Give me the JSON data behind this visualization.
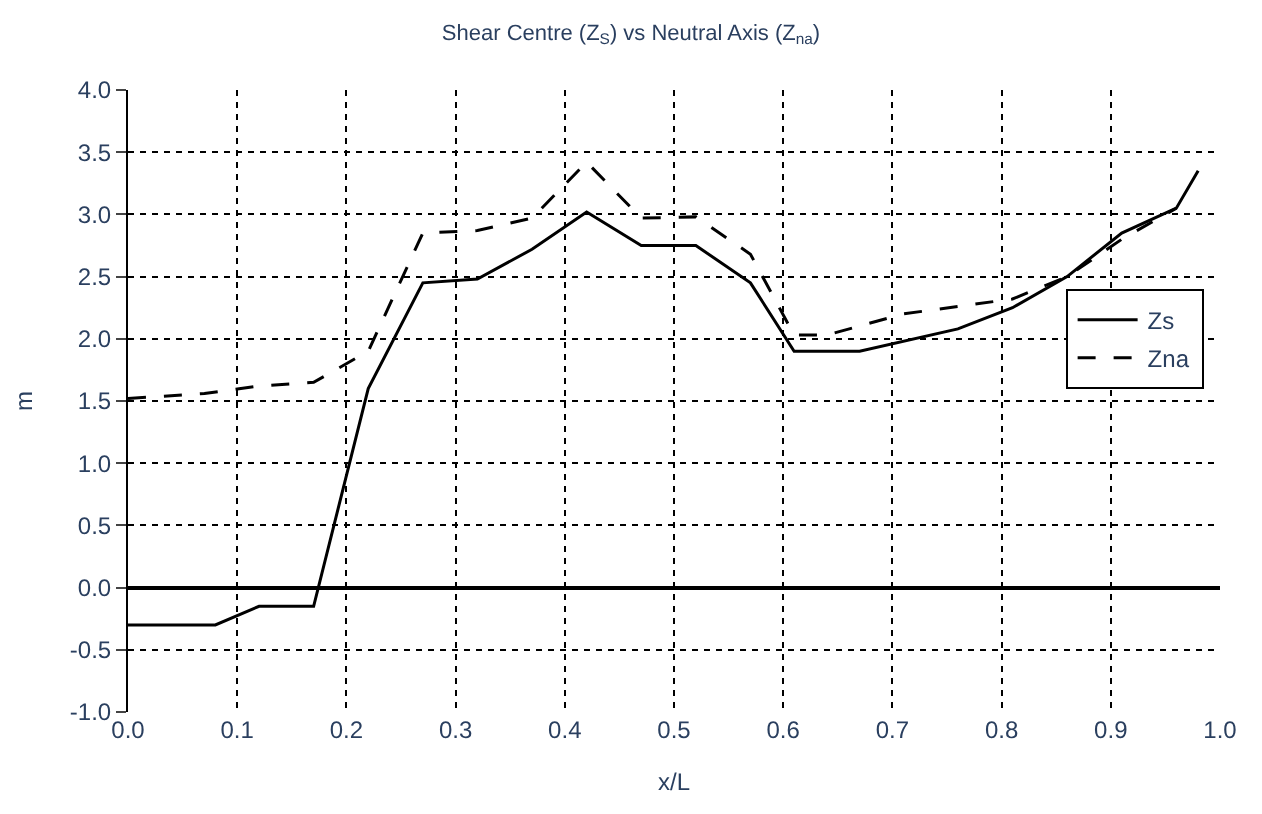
{
  "chart_data": {
    "type": "line",
    "title": "Shear Centre (Z$_{S}$) vs Neutral Axis (Z$_{na}$)",
    "xlabel": "x/L",
    "ylabel": "m",
    "xlim": [
      0,
      1
    ],
    "xticks": [
      {
        "value": 0,
        "label": "0.0"
      },
      0.1,
      0.2,
      0.3,
      0.4,
      0.5,
      0.6,
      0.7,
      0.8,
      0.9,
      {
        "value": 1,
        "label": "1.0"
      }
    ],
    "ylim": [
      -1,
      4
    ],
    "yticks": [
      {
        "value": -1,
        "label": "-1.0"
      },
      -0.5,
      {
        "value": 0,
        "label": "0.0"
      },
      0.5,
      {
        "value": 1,
        "label": "1.0"
      },
      1.5,
      {
        "value": 2,
        "label": "2.0"
      },
      2.5,
      {
        "value": 3,
        "label": "3.0"
      },
      3.5,
      {
        "value": 4,
        "label": "4.0"
      }
    ],
    "grid": true,
    "legend": "right",
    "series": [
      {
        "name": "Zs",
        "color": "#000000",
        "line_style": "solid",
        "x": [
          0.0,
          0.08,
          0.12,
          0.17,
          0.22,
          0.27,
          0.32,
          0.37,
          0.42,
          0.47,
          0.52,
          0.57,
          0.61,
          0.67,
          0.76,
          0.81,
          0.86,
          0.91,
          0.96,
          0.98
        ],
        "values": [
          -0.3,
          -0.3,
          -0.15,
          -0.15,
          1.6,
          2.45,
          2.48,
          2.72,
          3.02,
          2.75,
          2.75,
          2.45,
          1.9,
          1.9,
          2.08,
          2.25,
          2.5,
          2.85,
          3.05,
          3.35
        ]
      },
      {
        "name": "Zna",
        "color": "#000000",
        "line_style": "dashed",
        "x": [
          0.0,
          0.07,
          0.12,
          0.17,
          0.22,
          0.27,
          0.32,
          0.37,
          0.42,
          0.47,
          0.52,
          0.57,
          0.61,
          0.64,
          0.71,
          0.81,
          0.86,
          0.91,
          0.96
        ],
        "values": [
          1.52,
          1.56,
          1.62,
          1.65,
          1.9,
          2.85,
          2.87,
          2.97,
          3.42,
          2.97,
          2.98,
          2.68,
          2.03,
          2.03,
          2.2,
          2.32,
          2.5,
          2.8,
          3.05
        ]
      }
    ]
  }
}
